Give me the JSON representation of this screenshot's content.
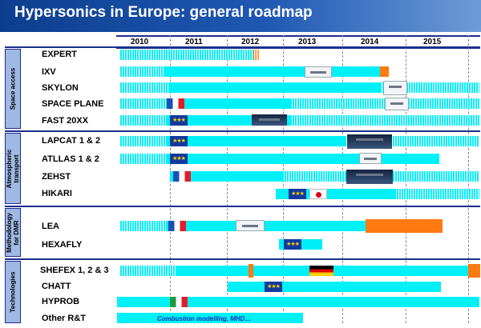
{
  "title": "Hypersonics in Europe: general roadmap",
  "years": [
    "2010",
    "2011",
    "2012",
    "2013",
    "2014",
    "2015"
  ],
  "groups": {
    "space_access": "Space access",
    "atmospheric_transport": "Atmospheric transport",
    "methodology": "Methodology for DMR",
    "technologies": "Technologies"
  },
  "rows": {
    "expert": "EXPERT",
    "ixv": "IXV",
    "skylon": "SKYLON",
    "space_plane": "SPACE PLANE",
    "fast20xx": "FAST 20XX",
    "lapcat": "LAPCAT 1 & 2",
    "atllas": "ATLLAS 1 & 2",
    "zehst": "ZEHST",
    "hikari": "HIKARI",
    "lea": "LEA",
    "hexafly": "HEXAFLY",
    "shefex": "SHEFEX 1, 2 & 3",
    "chatt": "CHATT",
    "hyprob": "HYPROB",
    "other": "Other R&T"
  },
  "note": "Combustion modelling,  MHD…",
  "icons": {
    "eu_flag": "eu-flag-icon",
    "fr_flag": "french-flag-icon",
    "it_flag": "italian-flag-icon",
    "de_flag": "german-flag-icon",
    "jp_flag": "japanese-flag-icon",
    "vehicle": "vehicle-illustration"
  },
  "colors": {
    "header": "#1f58b3",
    "bar": "#00f0f8",
    "highlight": "#ff7a10",
    "rule": "#1b2d8f"
  }
}
